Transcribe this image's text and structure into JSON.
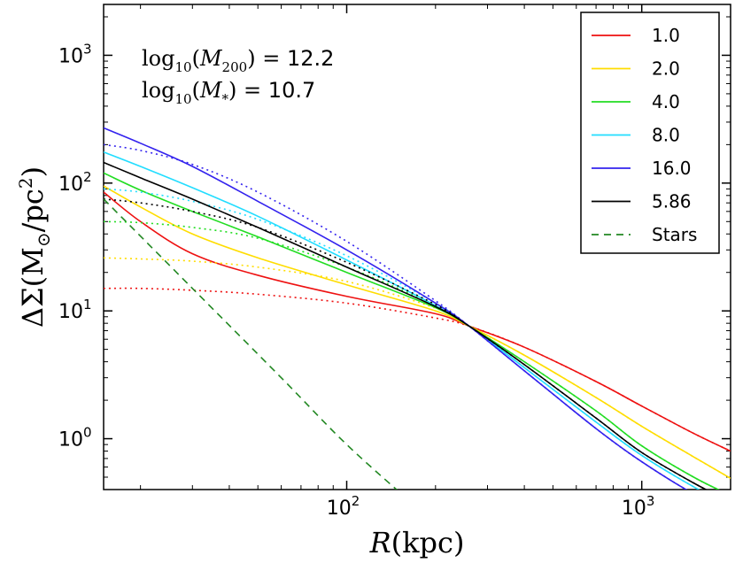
{
  "chart_data": {
    "type": "line",
    "xscale": "log",
    "yscale": "log",
    "xlim": [
      15,
      2000
    ],
    "ylim": [
      0.4,
      2500
    ],
    "xlabel": "R(kpc)",
    "ylabel": "ΔΣ(M☉/pc²)",
    "x_ticks": [
      {
        "value": 100,
        "base": "10",
        "exp": "2"
      },
      {
        "value": 1000,
        "base": "10",
        "exp": "3"
      }
    ],
    "y_ticks": [
      {
        "value": 1,
        "base": "10",
        "exp": "0"
      },
      {
        "value": 10,
        "base": "10",
        "exp": "1"
      },
      {
        "value": 100,
        "base": "10",
        "exp": "2"
      },
      {
        "value": 1000,
        "base": "10",
        "exp": "3"
      }
    ],
    "annotations": [
      {
        "prefix": "log",
        "sub": "10",
        "arg": "(M",
        "arg_sub": "200",
        "arg_end": ")",
        "eq": " = ",
        "value": "12.2"
      },
      {
        "prefix": "log",
        "sub": "10",
        "arg": "(M",
        "arg_sub": "*",
        "arg_end": ")",
        "eq": " = ",
        "value": "10.7"
      }
    ],
    "legend_position": "top-right",
    "series": [
      {
        "name": "1.0",
        "color": "#ee1111",
        "style": "solid",
        "x": [
          15,
          20,
          30,
          50,
          100,
          200,
          260,
          400,
          700,
          1000,
          1500,
          2000
        ],
        "y": [
          85,
          50,
          28,
          19,
          13,
          9.5,
          7.6,
          5.2,
          2.8,
          1.8,
          1.1,
          0.8
        ]
      },
      {
        "name": "1.0",
        "color": "#ee1111",
        "style": "dotted",
        "in_legend": false,
        "x": [
          15,
          20,
          30,
          50,
          100,
          200,
          260,
          400,
          700,
          1000,
          1500,
          2000
        ],
        "y": [
          15,
          15,
          14.5,
          13.5,
          11.5,
          8.8,
          7.6,
          5.2,
          2.8,
          1.8,
          1.1,
          0.8
        ]
      },
      {
        "name": "2.0",
        "color": "#ffdd00",
        "style": "solid",
        "x": [
          15,
          20,
          30,
          50,
          100,
          200,
          260,
          400,
          700,
          1000,
          1500,
          2000
        ],
        "y": [
          95,
          65,
          40,
          26,
          16,
          10,
          7.6,
          4.5,
          2.1,
          1.25,
          0.72,
          0.49
        ]
      },
      {
        "name": "2.0",
        "color": "#ffdd00",
        "style": "dotted",
        "in_legend": false,
        "x": [
          15,
          20,
          30,
          50,
          100,
          200,
          260,
          400,
          700,
          1000,
          1500,
          2000
        ],
        "y": [
          26,
          25.5,
          24.5,
          22,
          17,
          10.5,
          7.6,
          4.5,
          2.1,
          1.25,
          0.72,
          0.49
        ]
      },
      {
        "name": "4.0",
        "color": "#22dd22",
        "style": "solid",
        "x": [
          15,
          20,
          30,
          50,
          100,
          200,
          260,
          400,
          700,
          1000,
          1500,
          2000
        ],
        "y": [
          120,
          88,
          60,
          38,
          20,
          10.6,
          7.6,
          4,
          1.65,
          0.88,
          0.5,
          0.36
        ]
      },
      {
        "name": "4.0",
        "color": "#22dd22",
        "style": "dotted",
        "in_legend": false,
        "x": [
          15,
          20,
          30,
          50,
          100,
          200,
          260,
          400,
          700,
          1000,
          1500,
          2000
        ],
        "y": [
          50,
          49,
          45,
          37,
          22,
          11,
          7.6,
          4,
          1.65,
          0.88,
          0.5,
          0.36
        ]
      },
      {
        "name": "8.0",
        "color": "#22ddff",
        "style": "solid",
        "x": [
          15,
          20,
          30,
          50,
          100,
          200,
          260,
          400,
          700,
          1000,
          1500,
          2000
        ],
        "y": [
          175,
          135,
          92,
          55,
          25,
          11,
          7.6,
          3.6,
          1.35,
          0.74,
          0.42,
          0.3
        ]
      },
      {
        "name": "8.0",
        "color": "#22ddff",
        "style": "dotted",
        "in_legend": false,
        "x": [
          15,
          20,
          30,
          50,
          100,
          200,
          260,
          400,
          700,
          1000,
          1500,
          2000
        ],
        "y": [
          90,
          85,
          72,
          52,
          27,
          11.5,
          7.6,
          3.6,
          1.35,
          0.74,
          0.42,
          0.3
        ]
      },
      {
        "name": "16.0",
        "color": "#3322ee",
        "style": "solid",
        "x": [
          15,
          20,
          30,
          50,
          100,
          200,
          260,
          400,
          700,
          1000,
          1500,
          2000
        ],
        "y": [
          270,
          205,
          135,
          72,
          30,
          11.5,
          7.6,
          3.4,
          1.2,
          0.66,
          0.37,
          0.27
        ]
      },
      {
        "name": "16.0",
        "color": "#3322ee",
        "style": "dotted",
        "in_legend": false,
        "x": [
          15,
          20,
          30,
          50,
          100,
          200,
          260,
          400,
          700,
          1000,
          1500,
          2000
        ],
        "y": [
          200,
          180,
          140,
          85,
          35,
          12,
          7.6,
          3.4,
          1.2,
          0.66,
          0.37,
          0.27
        ]
      },
      {
        "name": "5.86",
        "color": "#000000",
        "style": "solid",
        "x": [
          15,
          20,
          30,
          50,
          100,
          200,
          260,
          400,
          700,
          1000,
          1500,
          2000
        ],
        "y": [
          145,
          110,
          75,
          45,
          22,
          10.8,
          7.6,
          3.8,
          1.45,
          0.78,
          0.45,
          0.32
        ]
      },
      {
        "name": "5.86",
        "color": "#000000",
        "style": "dotted",
        "in_legend": false,
        "x": [
          15,
          20,
          30,
          50,
          100,
          200,
          260,
          400,
          700,
          1000,
          1500,
          2000
        ],
        "y": [
          75,
          70,
          60,
          45,
          24,
          11.2,
          7.6,
          3.8,
          1.45,
          0.78,
          0.45,
          0.32
        ]
      },
      {
        "name": "Stars",
        "color": "#228822",
        "style": "dashed",
        "x": [
          15,
          30,
          60,
          100,
          170
        ],
        "y": [
          75,
          15,
          3,
          0.9,
          0.3
        ]
      }
    ]
  }
}
